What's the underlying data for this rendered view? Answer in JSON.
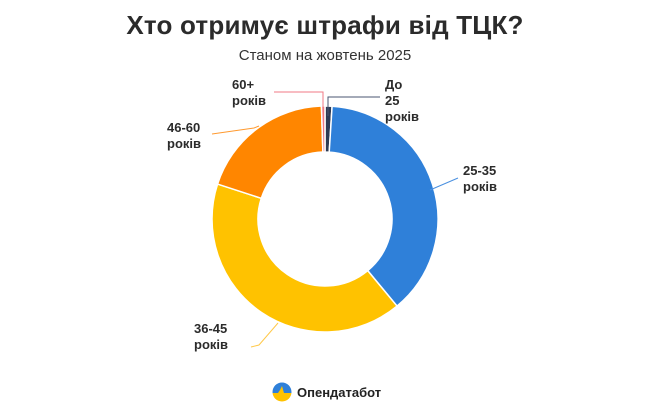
{
  "header": {
    "title": "Хто отримує штрафи від ТЦК?",
    "subtitle": "Станом на жовтень 2025"
  },
  "labels": {
    "under25": [
      "До",
      "25",
      "років"
    ],
    "a25_35": [
      "25-35",
      "років"
    ],
    "a36_45": [
      "36-45",
      "років"
    ],
    "a46_60": [
      "46-60",
      "років"
    ],
    "a60plus": [
      "60+",
      "років"
    ]
  },
  "footer": {
    "brand": "Опендатабот"
  },
  "colors": {
    "under25": "#2e3b55",
    "a25_35": "#2f80d9",
    "a36_45": "#ffc200",
    "a46_60": "#ff8600",
    "a60plus": "#f07a84"
  },
  "chart_data": {
    "type": "pie",
    "subtype": "donut",
    "title": "Хто отримує штрафи від ТЦК?",
    "subtitle": "Станом на жовтень 2025",
    "categories": [
      "До 25 років",
      "25-35 років",
      "36-45 років",
      "46-60 років",
      "60+ років"
    ],
    "values": [
      1.0,
      38.0,
      41.0,
      19.5,
      0.5
    ],
    "unit": "% (estimated from slice angles)",
    "colors": [
      "#2e3b55",
      "#2f80d9",
      "#ffc200",
      "#ff8600",
      "#f07a84"
    ],
    "start_angle": "12 o'clock, clockwise",
    "legend": "none (direct labels with leader lines)"
  }
}
